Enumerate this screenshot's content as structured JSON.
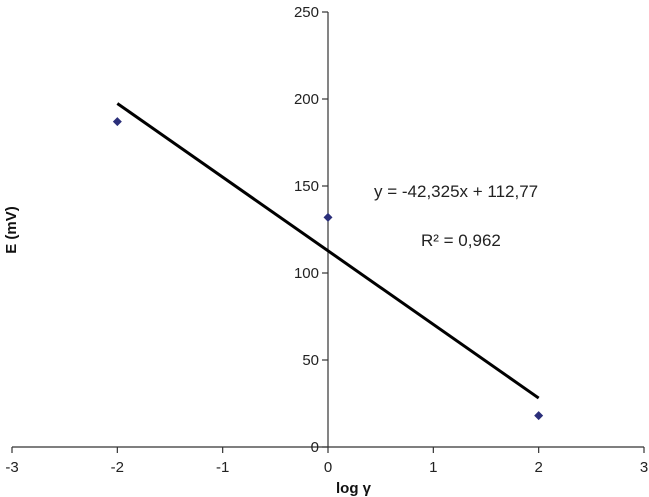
{
  "chart_data": {
    "type": "scatter",
    "title": "",
    "xlabel": "log γ",
    "ylabel": "E (mV)",
    "xlim": [
      -3,
      3
    ],
    "ylim": [
      0,
      250
    ],
    "xticks": [
      -3,
      -2,
      -1,
      0,
      1,
      2,
      3
    ],
    "yticks": [
      0,
      50,
      100,
      150,
      200,
      250
    ],
    "grid": false,
    "legend": "none",
    "series": [
      {
        "points": [
          {
            "x": -2,
            "y": 187
          },
          {
            "x": 0,
            "y": 132
          },
          {
            "x": 2,
            "y": 18
          }
        ],
        "color": "#2b2f7a",
        "marker": "diamond"
      }
    ],
    "trendline": {
      "slope": -42.325,
      "intercept": 112.77,
      "x_range": [
        -2,
        2
      ],
      "color": "#000000",
      "equation_label": "y = -42,325x + 112,77",
      "r2_label": "R² = 0,962"
    }
  }
}
